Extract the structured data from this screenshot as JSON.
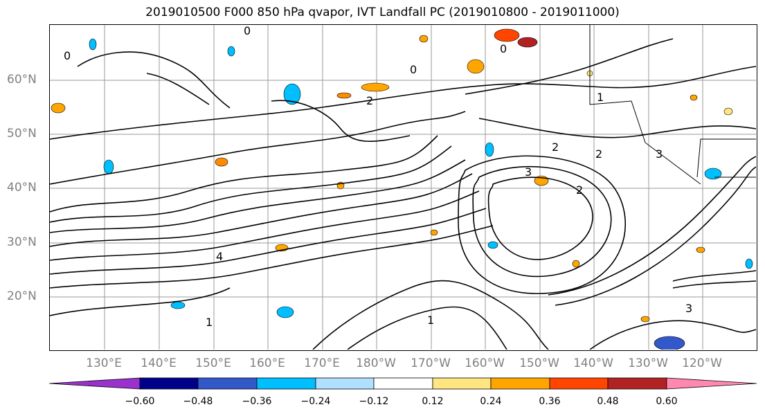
{
  "title": "2019010500 F000 850 hPa qvapor, IVT Landfall PC (2019010800 - 2019011000)",
  "map": {
    "lat_labels": [
      "60°N",
      "50°N",
      "40°N",
      "30°N",
      "20°N"
    ],
    "lon_labels": [
      "130°E",
      "140°E",
      "150°E",
      "160°E",
      "170°E",
      "180°W",
      "170°W",
      "160°W",
      "150°W",
      "140°W",
      "130°W",
      "120°W"
    ],
    "contour_labels": [
      "0",
      "2",
      "0",
      "0",
      "1",
      "2",
      "2",
      "3",
      "3",
      "2",
      "1",
      "4",
      "1",
      "3",
      "0"
    ]
  },
  "colorbar": {
    "colors": [
      "#9932cc",
      "#00008b",
      "#3358c9",
      "#00bfff",
      "#b0e0ff",
      "#ffffff",
      "#ffe680",
      "#ffa500",
      "#ff4500",
      "#b22222",
      "#ff88b0"
    ],
    "tick_labels": [
      "−0.60",
      "−0.48",
      "−0.36",
      "−0.24",
      "−0.12",
      "0.12",
      "0.24",
      "0.36",
      "0.48",
      "0.60"
    ]
  }
}
